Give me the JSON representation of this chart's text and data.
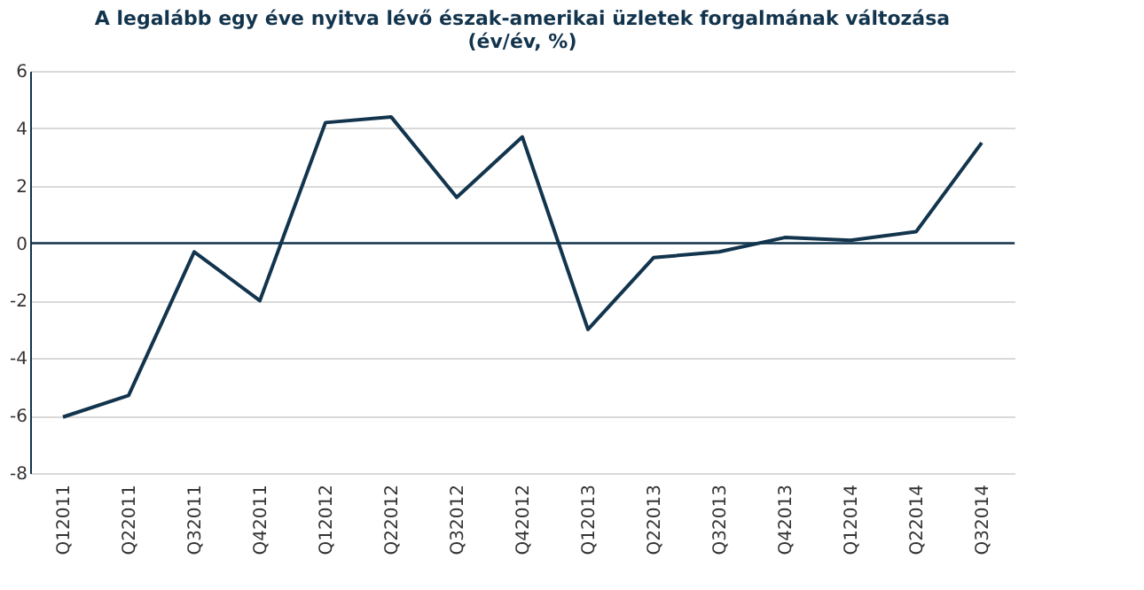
{
  "chart_data": {
    "type": "line",
    "title": [
      "A legalább egy éve nyitva lévő észak-amerikai üzletek forgalmának változása",
      "(év/év, %)"
    ],
    "categories": [
      "Q12011",
      "Q22011",
      "Q32011",
      "Q42011",
      "Q12012",
      "Q22012",
      "Q32012",
      "Q42012",
      "Q12013",
      "Q22013",
      "Q32013",
      "Q42013",
      "Q12014",
      "Q22014",
      "Q32014"
    ],
    "series": [
      {
        "color": "#12344d",
        "values": [
          -6.05,
          -5.3,
          -0.3,
          -2.0,
          4.2,
          4.4,
          1.6,
          3.7,
          -3.0,
          -0.5,
          -0.3,
          0.2,
          0.1,
          0.4,
          3.5
        ]
      }
    ],
    "ylim": [
      -8,
      6
    ],
    "yticks": [
      -8,
      -6,
      -4,
      -2,
      0,
      2,
      4,
      6
    ],
    "grid": "y",
    "marker": "none",
    "line_style": "solid",
    "ref_lines": [
      {
        "axis": "y",
        "value": 0,
        "color": "#12344d"
      }
    ]
  }
}
